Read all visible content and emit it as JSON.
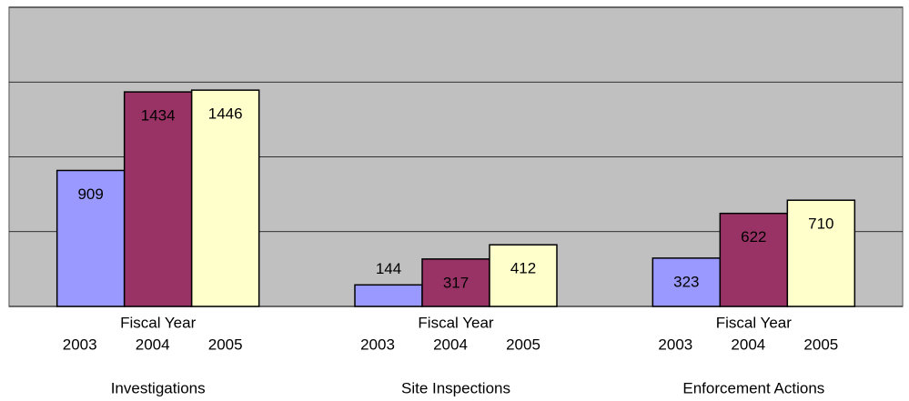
{
  "chart_data": {
    "type": "bar",
    "categories": [
      "Investigations",
      "Site Inspections",
      "Enforcement Actions"
    ],
    "xlabel": "Fiscal Year",
    "series": [
      {
        "name": "2003",
        "color": "#9999ff",
        "values": [
          909,
          144,
          323
        ]
      },
      {
        "name": "2004",
        "color": "#993366",
        "values": [
          1434,
          317,
          622
        ]
      },
      {
        "name": "2005",
        "color": "#ffffcc",
        "values": [
          1446,
          412,
          710
        ]
      }
    ],
    "ylim": [
      0,
      2000
    ],
    "yticks": [
      0,
      500,
      1000,
      1500,
      2000
    ],
    "grid": true,
    "background": "#c0c0c0"
  }
}
